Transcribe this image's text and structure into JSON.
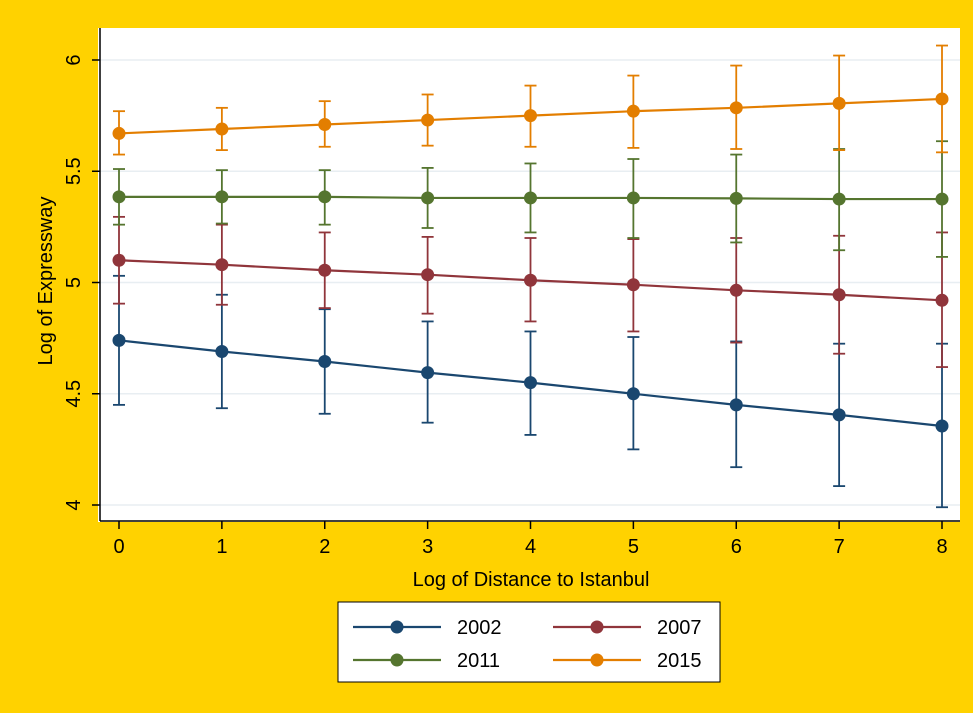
{
  "colors": {
    "background": "#FFD200",
    "plot_background": "#FFFFFF",
    "grid": "#E8EEF2"
  },
  "chart_data": {
    "type": "line",
    "title": "",
    "xlabel": "Log of Distance to Istanbul",
    "ylabel": "Log of Expressway",
    "xlim": [
      0,
      8
    ],
    "ylim": [
      4,
      6
    ],
    "x": [
      0,
      1,
      2,
      3,
      4,
      5,
      6,
      7,
      8
    ],
    "x_tick_labels": [
      "0",
      "1",
      "2",
      "3",
      "4",
      "5",
      "6",
      "7",
      "8"
    ],
    "y_ticks": [
      4,
      4.5,
      5,
      5.5,
      6
    ],
    "y_tick_labels": [
      "4",
      "4.5",
      "5",
      "5.5",
      "6"
    ],
    "grid": true,
    "legend_position": "bottom",
    "error_bars": true,
    "series": [
      {
        "name": "2002",
        "color": "#1A476F",
        "values": [
          4.74,
          4.69,
          4.645,
          4.595,
          4.55,
          4.5,
          4.45,
          4.405,
          4.355
        ],
        "lower": [
          4.45,
          4.435,
          4.41,
          4.37,
          4.315,
          4.25,
          4.17,
          4.085,
          3.99
        ],
        "upper": [
          5.03,
          4.945,
          4.88,
          4.825,
          4.78,
          4.755,
          4.735,
          4.725,
          4.725
        ]
      },
      {
        "name": "2007",
        "color": "#90353B",
        "values": [
          5.1,
          5.08,
          5.055,
          5.035,
          5.01,
          4.99,
          4.965,
          4.945,
          4.92
        ],
        "lower": [
          4.905,
          4.9,
          4.885,
          4.86,
          4.825,
          4.78,
          4.73,
          4.68,
          4.62
        ],
        "upper": [
          5.295,
          5.26,
          5.225,
          5.205,
          5.2,
          5.195,
          5.2,
          5.21,
          5.225
        ]
      },
      {
        "name": "2011",
        "color": "#55752F",
        "values": [
          5.385,
          5.385,
          5.385,
          5.38,
          5.38,
          5.38,
          5.378,
          5.375,
          5.375
        ],
        "lower": [
          5.26,
          5.265,
          5.26,
          5.245,
          5.225,
          5.2,
          5.18,
          5.145,
          5.115
        ],
        "upper": [
          5.51,
          5.505,
          5.505,
          5.515,
          5.535,
          5.555,
          5.575,
          5.6,
          5.635
        ]
      },
      {
        "name": "2015",
        "color": "#E37E00",
        "values": [
          5.67,
          5.69,
          5.71,
          5.73,
          5.75,
          5.77,
          5.785,
          5.805,
          5.825
        ],
        "lower": [
          5.575,
          5.595,
          5.61,
          5.615,
          5.61,
          5.605,
          5.6,
          5.595,
          5.585
        ],
        "upper": [
          5.77,
          5.785,
          5.815,
          5.845,
          5.885,
          5.93,
          5.975,
          6.02,
          6.065
        ]
      }
    ]
  }
}
